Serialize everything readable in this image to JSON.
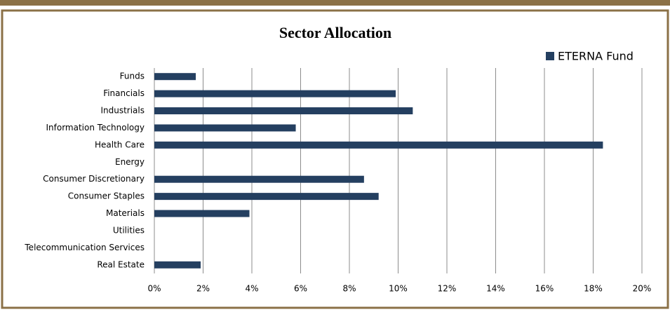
{
  "chart_data": {
    "type": "bar",
    "orientation": "horizontal",
    "title": "Sector Allocation",
    "categories": [
      "Funds",
      "Financials",
      "Industrials",
      "Information Technology",
      "Health Care",
      "Energy",
      "Consumer Discretionary",
      "Consumer Staples",
      "Materials",
      "Utilities",
      "Telecommunication Services",
      "Real Estate"
    ],
    "series": [
      {
        "name": "ETERNA Fund",
        "color": "#243f60",
        "values": [
          1.7,
          9.9,
          10.6,
          5.8,
          18.4,
          0,
          8.6,
          9.2,
          3.9,
          0,
          0,
          1.9
        ]
      }
    ],
    "xlim": [
      0,
      20
    ],
    "xticks": [
      {
        "value": 0,
        "label": "0%"
      },
      {
        "value": 2,
        "label": "2%"
      },
      {
        "value": 4,
        "label": "4%"
      },
      {
        "value": 6,
        "label": "6%"
      },
      {
        "value": 8,
        "label": "8%"
      },
      {
        "value": 10,
        "label": "10%"
      },
      {
        "value": 12,
        "label": "12%"
      },
      {
        "value": 14,
        "label": "14%"
      },
      {
        "value": 16,
        "label": "16%"
      },
      {
        "value": 18,
        "label": "18%"
      },
      {
        "value": 20,
        "label": "20%"
      }
    ],
    "grid": true,
    "legend": "top-right"
  }
}
